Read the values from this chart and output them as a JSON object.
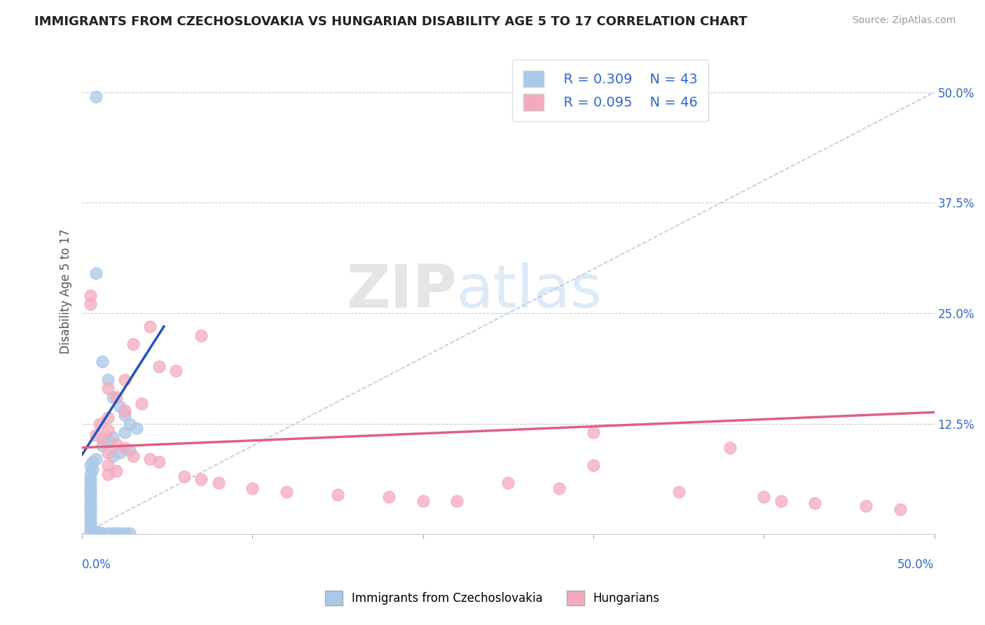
{
  "title": "IMMIGRANTS FROM CZECHOSLOVAKIA VS HUNGARIAN DISABILITY AGE 5 TO 17 CORRELATION CHART",
  "source": "Source: ZipAtlas.com",
  "ylabel": "Disability Age 5 to 17",
  "xlim": [
    0.0,
    0.5
  ],
  "ylim": [
    0.0,
    0.55
  ],
  "watermark_zip": "ZIP",
  "watermark_atlas": "atlas",
  "legend_blue_R": "R = 0.309",
  "legend_blue_N": "N = 43",
  "legend_pink_R": "R = 0.095",
  "legend_pink_N": "N = 46",
  "blue_color": "#aac8e8",
  "pink_color": "#f4aabe",
  "blue_line_color": "#2255bb",
  "pink_line_color": "#e06080",
  "axis_label_color": "#3366cc",
  "blue_line": [
    [
      0.0,
      0.09
    ],
    [
      0.048,
      0.235
    ]
  ],
  "pink_line": [
    [
      0.0,
      0.098
    ],
    [
      0.5,
      0.138
    ]
  ],
  "diag_line": [
    [
      0.0,
      0.0
    ],
    [
      0.5,
      0.5
    ]
  ],
  "blue_scatter": [
    [
      0.008,
      0.495
    ],
    [
      0.008,
      0.295
    ],
    [
      0.012,
      0.195
    ],
    [
      0.015,
      0.175
    ],
    [
      0.018,
      0.155
    ],
    [
      0.022,
      0.145
    ],
    [
      0.025,
      0.135
    ],
    [
      0.028,
      0.125
    ],
    [
      0.032,
      0.12
    ],
    [
      0.025,
      0.115
    ],
    [
      0.018,
      0.11
    ],
    [
      0.015,
      0.105
    ],
    [
      0.012,
      0.1
    ],
    [
      0.028,
      0.095
    ],
    [
      0.022,
      0.092
    ],
    [
      0.018,
      0.088
    ],
    [
      0.008,
      0.085
    ],
    [
      0.006,
      0.082
    ],
    [
      0.005,
      0.078
    ],
    [
      0.006,
      0.073
    ],
    [
      0.005,
      0.068
    ],
    [
      0.005,
      0.063
    ],
    [
      0.005,
      0.058
    ],
    [
      0.005,
      0.053
    ],
    [
      0.005,
      0.048
    ],
    [
      0.005,
      0.043
    ],
    [
      0.005,
      0.038
    ],
    [
      0.005,
      0.033
    ],
    [
      0.005,
      0.028
    ],
    [
      0.005,
      0.023
    ],
    [
      0.005,
      0.018
    ],
    [
      0.005,
      0.013
    ],
    [
      0.005,
      0.008
    ],
    [
      0.005,
      0.005
    ],
    [
      0.008,
      0.003
    ],
    [
      0.01,
      0.002
    ],
    [
      0.012,
      0.001
    ],
    [
      0.015,
      0.001
    ],
    [
      0.018,
      0.001
    ],
    [
      0.02,
      0.001
    ],
    [
      0.022,
      0.001
    ],
    [
      0.025,
      0.001
    ],
    [
      0.028,
      0.001
    ]
  ],
  "pink_scatter": [
    [
      0.005,
      0.27
    ],
    [
      0.005,
      0.26
    ],
    [
      0.04,
      0.235
    ],
    [
      0.07,
      0.225
    ],
    [
      0.03,
      0.215
    ],
    [
      0.045,
      0.19
    ],
    [
      0.055,
      0.185
    ],
    [
      0.025,
      0.175
    ],
    [
      0.015,
      0.165
    ],
    [
      0.02,
      0.155
    ],
    [
      0.035,
      0.148
    ],
    [
      0.025,
      0.14
    ],
    [
      0.015,
      0.132
    ],
    [
      0.01,
      0.125
    ],
    [
      0.015,
      0.118
    ],
    [
      0.008,
      0.112
    ],
    [
      0.012,
      0.108
    ],
    [
      0.02,
      0.102
    ],
    [
      0.025,
      0.098
    ],
    [
      0.015,
      0.092
    ],
    [
      0.03,
      0.088
    ],
    [
      0.04,
      0.085
    ],
    [
      0.045,
      0.082
    ],
    [
      0.015,
      0.078
    ],
    [
      0.02,
      0.072
    ],
    [
      0.015,
      0.068
    ],
    [
      0.06,
      0.065
    ],
    [
      0.07,
      0.062
    ],
    [
      0.08,
      0.058
    ],
    [
      0.1,
      0.052
    ],
    [
      0.12,
      0.048
    ],
    [
      0.15,
      0.045
    ],
    [
      0.18,
      0.042
    ],
    [
      0.2,
      0.038
    ],
    [
      0.22,
      0.038
    ],
    [
      0.25,
      0.058
    ],
    [
      0.28,
      0.052
    ],
    [
      0.3,
      0.078
    ],
    [
      0.35,
      0.048
    ],
    [
      0.38,
      0.098
    ],
    [
      0.4,
      0.042
    ],
    [
      0.41,
      0.038
    ],
    [
      0.43,
      0.035
    ],
    [
      0.46,
      0.032
    ],
    [
      0.48,
      0.028
    ],
    [
      0.3,
      0.115
    ]
  ]
}
